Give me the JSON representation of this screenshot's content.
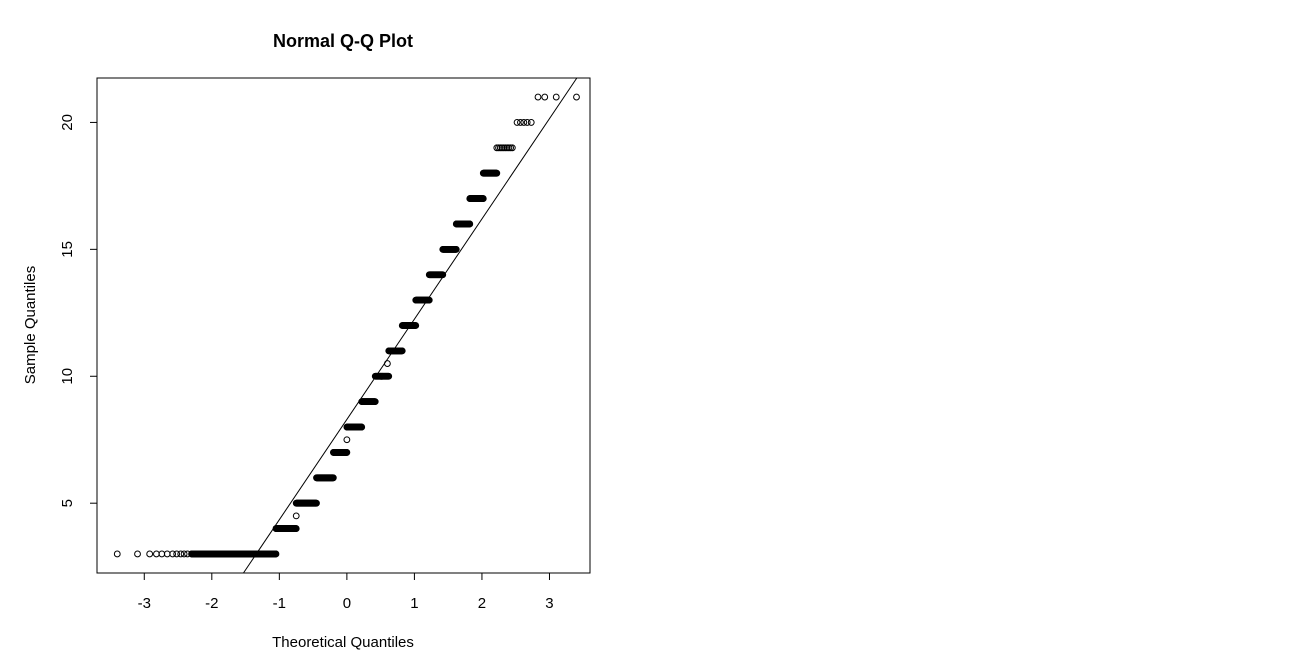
{
  "chart_data": {
    "type": "scatter",
    "title": "Normal Q-Q Plot",
    "xlabel": "Theoretical Quantiles",
    "ylabel": "Sample Quantiles",
    "xlim": [
      -3.7,
      3.6
    ],
    "ylim": [
      2.25,
      21.75
    ],
    "xticks": [
      -3,
      -2,
      -1,
      0,
      1,
      2,
      3
    ],
    "yticks": [
      5,
      10,
      15,
      20
    ],
    "grid": false,
    "reference_line": {
      "intercept": 8.3,
      "slope": 3.95
    },
    "point_style": "open-circle",
    "color": "#000000",
    "clusters": [
      {
        "y": 3,
        "x_start": -2.3,
        "x_end": -1.05,
        "dense": true
      },
      {
        "y": 4,
        "x_start": -1.05,
        "x_end": -0.75,
        "dense": true
      },
      {
        "y": 5,
        "x_start": -0.75,
        "x_end": -0.45,
        "dense": true
      },
      {
        "y": 6,
        "x_start": -0.45,
        "x_end": -0.2,
        "dense": true
      },
      {
        "y": 7,
        "x_start": -0.2,
        "x_end": 0.0,
        "dense": true
      },
      {
        "y": 8,
        "x_start": 0.0,
        "x_end": 0.22,
        "dense": true
      },
      {
        "y": 9,
        "x_start": 0.22,
        "x_end": 0.42,
        "dense": true
      },
      {
        "y": 10,
        "x_start": 0.42,
        "x_end": 0.62,
        "dense": true
      },
      {
        "y": 11,
        "x_start": 0.62,
        "x_end": 0.82,
        "dense": true
      },
      {
        "y": 12,
        "x_start": 0.82,
        "x_end": 1.02,
        "dense": true
      },
      {
        "y": 13,
        "x_start": 1.02,
        "x_end": 1.22,
        "dense": true
      },
      {
        "y": 14,
        "x_start": 1.22,
        "x_end": 1.42,
        "dense": true
      },
      {
        "y": 15,
        "x_start": 1.42,
        "x_end": 1.62,
        "dense": true
      },
      {
        "y": 16,
        "x_start": 1.62,
        "x_end": 1.82,
        "dense": true
      },
      {
        "y": 17,
        "x_start": 1.82,
        "x_end": 2.02,
        "dense": true
      },
      {
        "y": 18,
        "x_start": 2.02,
        "x_end": 2.22,
        "dense": true
      },
      {
        "y": 19,
        "x_start": 2.22,
        "x_end": 2.45,
        "dense": false
      }
    ],
    "points": [
      {
        "x": -3.4,
        "y": 3
      },
      {
        "x": -3.1,
        "y": 3
      },
      {
        "x": -2.92,
        "y": 3
      },
      {
        "x": -2.82,
        "y": 3
      },
      {
        "x": -2.74,
        "y": 3
      },
      {
        "x": -2.66,
        "y": 3
      },
      {
        "x": -2.58,
        "y": 3
      },
      {
        "x": -2.52,
        "y": 3
      },
      {
        "x": -2.46,
        "y": 3
      },
      {
        "x": -2.41,
        "y": 3
      },
      {
        "x": -2.36,
        "y": 3
      },
      {
        "x": -0.75,
        "y": 4.5
      },
      {
        "x": 0.0,
        "y": 7.5
      },
      {
        "x": 0.6,
        "y": 10.5
      },
      {
        "x": 2.52,
        "y": 20
      },
      {
        "x": 2.57,
        "y": 20
      },
      {
        "x": 2.62,
        "y": 20
      },
      {
        "x": 2.67,
        "y": 20
      },
      {
        "x": 2.73,
        "y": 20
      },
      {
        "x": 2.83,
        "y": 21
      },
      {
        "x": 2.93,
        "y": 21
      },
      {
        "x": 3.1,
        "y": 21
      },
      {
        "x": 3.4,
        "y": 21
      }
    ]
  }
}
